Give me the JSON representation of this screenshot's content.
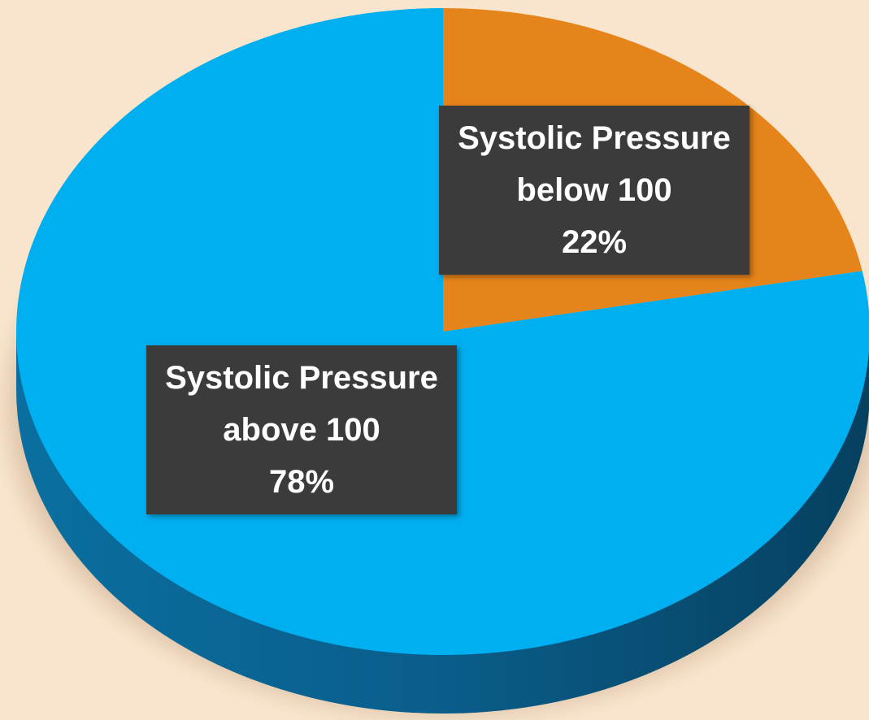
{
  "chart_data": {
    "type": "pie",
    "categories": [
      "Systolic Pressure below 100",
      "Systolic Pressure above 100"
    ],
    "values": [
      22,
      78
    ],
    "value_labels": [
      "22%",
      "78%"
    ],
    "colors": [
      "#e5841a",
      "#00aff0"
    ]
  }
}
